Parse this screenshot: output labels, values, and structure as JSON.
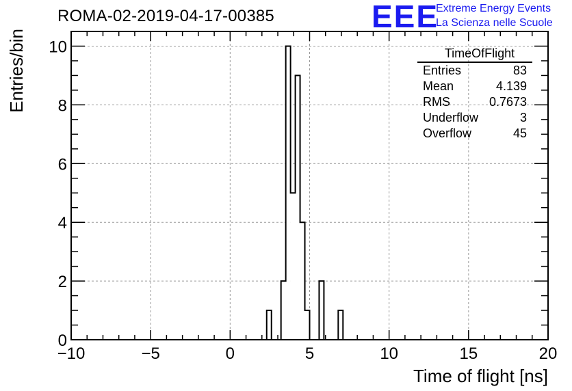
{
  "run_title": "ROMA-02-2019-04-17-00385",
  "branding": {
    "logo_text": "EEE",
    "line1": "Extreme Energy Events",
    "line2": "La Scienza nelle Scuole",
    "color": "#1b1bf0"
  },
  "stats_box": {
    "title": "TimeOfFlight",
    "rows": [
      {
        "label": "Entries",
        "value": "83"
      },
      {
        "label": "Mean",
        "value": "4.139"
      },
      {
        "label": "RMS",
        "value": "0.7673"
      },
      {
        "label": "Underflow",
        "value": "3"
      },
      {
        "label": "Overflow",
        "value": "45"
      }
    ]
  },
  "chart_data": {
    "type": "bar",
    "histogram": "step",
    "xlabel": "Time of flight [ns]",
    "ylabel": "Entries/bin",
    "xlim": [
      -10,
      20
    ],
    "ylim": [
      0,
      10.5
    ],
    "bin_width": 0.3,
    "x_ticks": [
      -10,
      -5,
      0,
      5,
      10,
      15,
      20
    ],
    "x_tick_labels": [
      "−10",
      "−5",
      "0",
      "5",
      "10",
      "15",
      "20"
    ],
    "y_ticks": [
      0,
      2,
      4,
      6,
      8,
      10
    ],
    "y_tick_labels": [
      "0",
      "2",
      "4",
      "6",
      "8",
      "10"
    ],
    "grid": true,
    "line_color": "#000000",
    "bins": [
      {
        "x0": 2.3,
        "value": 1
      },
      {
        "x0": 3.2,
        "value": 2
      },
      {
        "x0": 3.5,
        "value": 10
      },
      {
        "x0": 3.8,
        "value": 5
      },
      {
        "x0": 4.1,
        "value": 9
      },
      {
        "x0": 4.4,
        "value": 4
      },
      {
        "x0": 4.7,
        "value": 1
      },
      {
        "x0": 5.6,
        "value": 2
      },
      {
        "x0": 6.8,
        "value": 1
      }
    ]
  }
}
